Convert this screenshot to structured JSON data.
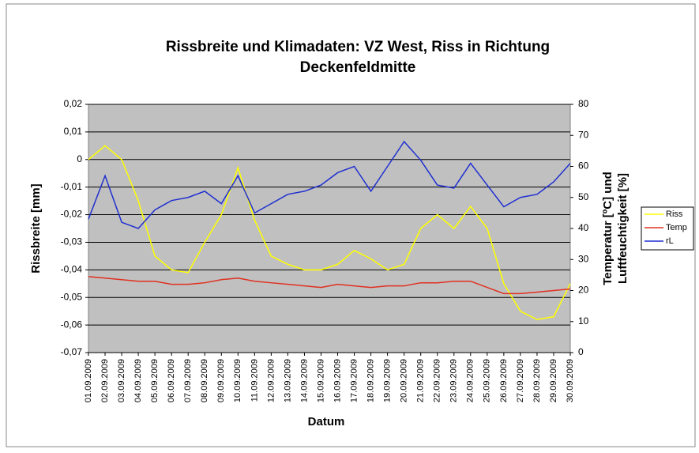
{
  "chart_data": {
    "type": "line",
    "title": [
      "Rissbreite und Klimadaten: VZ West, Riss in Richtung",
      "Deckenfeldmitte"
    ],
    "x_label": "Datum",
    "y_label": "Rissbreite [mm]",
    "y2_label": [
      "Temperatur [ºC] und",
      "Luftfeuchtigkeit [%]"
    ],
    "categories": [
      "01.09.2009",
      "02.09.2009",
      "03.09.2009",
      "04.09.2009",
      "05.09.2009",
      "06.09.2009",
      "07.09.2009",
      "08.09.2009",
      "09.09.2009",
      "10.09.2009",
      "11.09.2009",
      "12.09.2009",
      "13.09.2009",
      "14.09.2009",
      "15.09.2009",
      "16.09.2009",
      "17.09.2009",
      "18.09.2009",
      "19.09.2009",
      "20.09.2009",
      "21.09.2009",
      "22.09.2009",
      "23.09.2009",
      "24.09.2009",
      "25.09.2009",
      "26.09.2009",
      "27.09.2009",
      "28.09.2009",
      "29.09.2009",
      "30.09.2009"
    ],
    "ylim": [
      -0.07,
      0.02
    ],
    "yticks": [
      {
        "value": -0.07,
        "label": "-0,07"
      },
      {
        "value": -0.06,
        "label": "-0,06"
      },
      {
        "value": -0.05,
        "label": "-0,05"
      },
      {
        "value": -0.04,
        "label": "-0,04"
      },
      {
        "value": -0.03,
        "label": "-0,03"
      },
      {
        "value": -0.02,
        "label": "-0,02"
      },
      {
        "value": -0.01,
        "label": "-0,01"
      },
      0,
      {
        "value": 0.01,
        "label": "0,01"
      },
      {
        "value": 0.02,
        "label": "0,02"
      }
    ],
    "y2lim": [
      0,
      80
    ],
    "y2ticks": [
      0,
      10,
      20,
      30,
      40,
      50,
      60,
      70,
      80
    ],
    "grid": true,
    "legend": "right",
    "series": [
      {
        "name": "Riss",
        "color": "#ffff00",
        "values": [
          0.0,
          0.005,
          0.0,
          -0.015,
          -0.035,
          -0.04,
          -0.041,
          -0.03,
          -0.02,
          -0.003,
          -0.022,
          -0.035,
          -0.038,
          -0.04,
          -0.04,
          -0.038,
          -0.033,
          -0.036,
          -0.04,
          -0.038,
          -0.025,
          -0.02,
          -0.025,
          -0.017,
          -0.025,
          -0.045,
          -0.055,
          -0.058,
          -0.057,
          -0.045
        ]
      },
      {
        "name": "Temp",
        "color": "#e03020",
        "axis": "y2",
        "values": [
          24.5,
          24,
          23.5,
          23,
          23,
          22,
          22,
          22.5,
          23.5,
          24,
          23,
          22.5,
          22,
          21.5,
          21,
          22,
          21.5,
          21,
          21.5,
          21.5,
          22.5,
          22.5,
          23,
          23,
          21,
          19,
          19,
          19.5,
          20,
          20.5
        ]
      },
      {
        "name": "rL",
        "color": "#1f2fd0",
        "axis": "y2",
        "values": [
          43,
          57,
          42,
          40,
          46,
          49,
          50,
          52,
          48,
          57,
          45,
          48,
          51,
          52,
          54,
          58,
          60,
          52,
          60,
          68,
          62,
          54,
          53,
          61,
          54,
          47,
          50,
          51,
          55,
          61
        ]
      }
    ]
  }
}
